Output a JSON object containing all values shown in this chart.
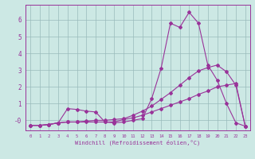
{
  "xlabel": "Windchill (Refroidissement éolien,°C)",
  "bg_color": "#cce8e4",
  "grid_color": "#99bbbb",
  "line_color": "#993399",
  "xlim": [
    -0.5,
    23.5
  ],
  "ylim": [
    -0.6,
    6.9
  ],
  "xticks": [
    0,
    1,
    2,
    3,
    4,
    5,
    6,
    7,
    8,
    9,
    10,
    11,
    12,
    13,
    14,
    15,
    16,
    17,
    18,
    19,
    20,
    21,
    22,
    23
  ],
  "yticks": [
    0,
    1,
    2,
    3,
    4,
    5,
    6
  ],
  "ytick_labels": [
    "-0",
    "1",
    "2",
    "3",
    "4",
    "5",
    "6"
  ],
  "line1_x": [
    0,
    1,
    2,
    3,
    4,
    5,
    6,
    7,
    8,
    9,
    10,
    11,
    12,
    13,
    14,
    15,
    16,
    17,
    18,
    19,
    20,
    21,
    22,
    23
  ],
  "line1_y": [
    -0.3,
    -0.3,
    -0.25,
    -0.15,
    0.7,
    0.65,
    0.55,
    0.5,
    -0.1,
    -0.15,
    -0.1,
    0.0,
    0.1,
    1.3,
    3.1,
    5.8,
    5.55,
    6.45,
    5.8,
    3.3,
    2.4,
    1.0,
    -0.15,
    -0.35
  ],
  "line2_x": [
    0,
    1,
    2,
    3,
    4,
    5,
    6,
    7,
    8,
    9,
    10,
    11,
    12,
    13,
    14,
    15,
    16,
    17,
    18,
    19,
    20,
    21,
    22,
    23
  ],
  "line2_y": [
    -0.3,
    -0.3,
    -0.25,
    -0.15,
    -0.1,
    -0.1,
    -0.1,
    -0.1,
    -0.1,
    -0.1,
    0.05,
    0.15,
    0.3,
    0.5,
    0.7,
    0.9,
    1.1,
    1.3,
    1.55,
    1.75,
    2.0,
    2.1,
    2.2,
    -0.35
  ],
  "line3_x": [
    0,
    1,
    2,
    3,
    4,
    5,
    6,
    7,
    8,
    9,
    10,
    11,
    12,
    13,
    14,
    15,
    16,
    17,
    18,
    19,
    20,
    21,
    22,
    23
  ],
  "line3_y": [
    -0.3,
    -0.3,
    -0.25,
    -0.15,
    -0.1,
    -0.1,
    -0.05,
    0.0,
    0.0,
    0.05,
    0.1,
    0.3,
    0.55,
    0.85,
    1.25,
    1.65,
    2.1,
    2.55,
    2.95,
    3.15,
    3.3,
    2.9,
    2.1,
    -0.35
  ]
}
